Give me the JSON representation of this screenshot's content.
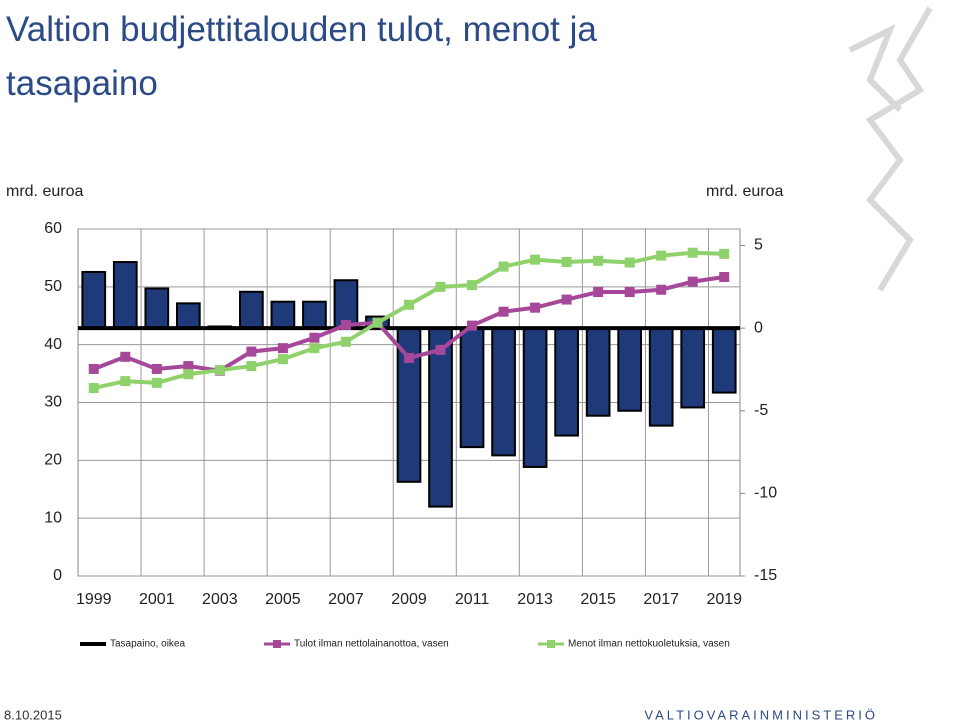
{
  "chart_data": {
    "type": "bar",
    "title": "Valtion budjettitalouden tulot, menot ja tasapaino",
    "y_label": "mrd. euroa",
    "y2_label": "mrd. euroa",
    "date": "8.10.2015",
    "organization": "VALTIOVARAINMINISTERIÖ",
    "categories": [
      "1999",
      null,
      "2001",
      null,
      "2003",
      null,
      "2005",
      null,
      "2007",
      null,
      "2009",
      null,
      "2011",
      null,
      "2013",
      null,
      "2015",
      null,
      "2017",
      null,
      "2019"
    ],
    "ylim": [
      0,
      60
    ],
    "yticks": [
      0,
      10,
      20,
      30,
      40,
      50,
      60
    ],
    "y2lim": [
      -15,
      6
    ],
    "y2ticks": [
      -15,
      -10,
      -5,
      0,
      5
    ],
    "grid": true,
    "legend": "bottom",
    "series": [
      {
        "name": "Tasapaino, oikea",
        "type": "bar",
        "axis": "y2",
        "color": "#1f3a78",
        "values": [
          3.4,
          4.0,
          2.4,
          1.5,
          0.1,
          2.2,
          1.6,
          1.6,
          2.9,
          0.7,
          -9.3,
          -10.8,
          -7.2,
          -7.7,
          -8.4,
          -6.5,
          -5.3,
          -5.0,
          -5.9,
          -4.8,
          -3.9
        ]
      },
      {
        "name": "Tulot ilman nettolainanottoa, vasen",
        "type": "line",
        "color": "#a6479a",
        "values": [
          35.8,
          37.9,
          35.8,
          36.3,
          35.5,
          38.8,
          39.4,
          41.2,
          43.4,
          43.8,
          37.7,
          39.1,
          43.3,
          45.7,
          46.4,
          47.8,
          49.1,
          49.1,
          49.5,
          50.9,
          51.7
        ]
      },
      {
        "name": "Menot ilman nettokuoletuksia, vasen",
        "type": "line",
        "color": "#8fd16a",
        "values": [
          32.5,
          33.7,
          33.4,
          34.9,
          35.6,
          36.3,
          37.5,
          39.4,
          40.5,
          43.8,
          46.9,
          50.0,
          50.3,
          53.5,
          54.7,
          54.3,
          54.5,
          54.2,
          55.4,
          55.9,
          55.7
        ]
      }
    ]
  }
}
